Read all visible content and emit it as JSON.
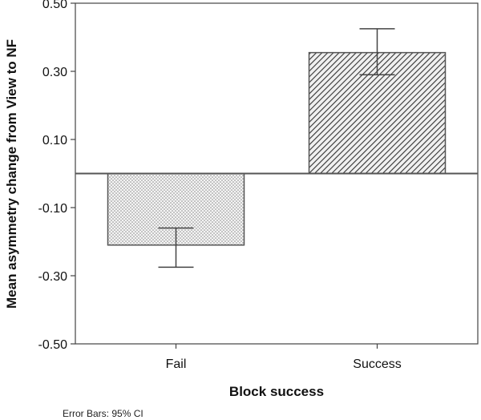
{
  "chart_data": {
    "type": "bar",
    "categories": [
      "Fail",
      "Success"
    ],
    "values": [
      -0.21,
      0.355
    ],
    "error_bars": [
      {
        "low": -0.275,
        "high": -0.16
      },
      {
        "low": 0.29,
        "high": 0.425
      }
    ],
    "patterns": [
      "stipple",
      "diagonal-hatch"
    ],
    "xlabel": "Block success",
    "ylabel": "Mean asymmetry change from View to NF",
    "ylim": [
      -0.5,
      0.5
    ],
    "yticks": [
      "0.50",
      "0.30",
      "0.10",
      "-0.10",
      "-0.30",
      "-0.50"
    ],
    "ytick_values": [
      0.5,
      0.3,
      0.1,
      -0.1,
      -0.3,
      -0.5
    ],
    "footnote": "Error Bars: 95% CI",
    "grid": false,
    "reference_line": 0
  },
  "colors": {
    "bar_stroke": "#555555",
    "axis": "#444444",
    "text": "#111111"
  }
}
